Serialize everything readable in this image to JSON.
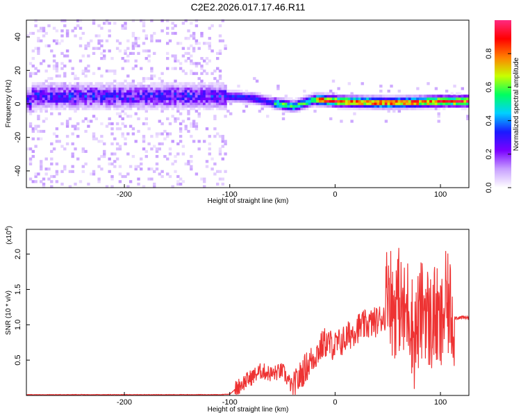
{
  "figure": {
    "title": "C2E2.2026.017.17.46.R11"
  },
  "chart_data": [
    {
      "type": "heatmap",
      "xlabel": "Height of straight line (km)",
      "ylabel": "Frequency (Hz)",
      "xlim": [
        -293,
        127
      ],
      "ylim": [
        -50,
        50
      ],
      "xticks": [
        -200,
        -100,
        0,
        100
      ],
      "yticks": [
        40,
        20,
        0,
        -20,
        -40
      ],
      "colorbar": {
        "label": "Normalized spectral amplitude",
        "range": [
          0.0,
          1.0
        ],
        "ticks": [
          "0.0",
          "0.2",
          "0.4",
          "0.6",
          "0.8"
        ],
        "colormap": [
          "#ffffff",
          "#c8a0ff",
          "#7a00ff",
          "#1a1aff",
          "#00d0ff",
          "#00ff60",
          "#c8ff00",
          "#ff8000",
          "#ff0000",
          "#ff2a80"
        ]
      },
      "ridge": [
        {
          "x": -290,
          "f": 4
        },
        {
          "x": -200,
          "f": 4
        },
        {
          "x": -110,
          "f": 4
        },
        {
          "x": -80,
          "f": 3
        },
        {
          "x": -60,
          "f": 0
        },
        {
          "x": -40,
          "f": -2
        },
        {
          "x": -20,
          "f": 2
        },
        {
          "x": 0,
          "f": 1
        },
        {
          "x": 50,
          "f": 0
        },
        {
          "x": 100,
          "f": 1
        },
        {
          "x": 125,
          "f": 1
        }
      ],
      "grid": false
    },
    {
      "type": "line",
      "xlabel": "Height of straight line (km)",
      "ylabel": "SNR (10 * v/v)",
      "scale_label": "(x10",
      "scale_exponent": "4",
      "scale_close": ")",
      "xlim": [
        -293,
        127
      ],
      "ylim": [
        0,
        2.35
      ],
      "xticks": [
        -200,
        -100,
        0,
        100
      ],
      "yticks": [
        "0.5",
        "1.0",
        "1.5",
        "2.0"
      ],
      "line_color": "#ee3333",
      "series": [
        {
          "values": [
            [
              -293,
              0.01
            ],
            [
              -150,
              0.01
            ],
            [
              -110,
              0.01
            ],
            [
              -100,
              0.02
            ],
            [
              -90,
              0.15
            ],
            [
              -80,
              0.25
            ],
            [
              -70,
              0.35
            ],
            [
              -60,
              0.3
            ],
            [
              -50,
              0.35
            ],
            [
              -40,
              0.1
            ],
            [
              -30,
              0.35
            ],
            [
              -20,
              0.55
            ],
            [
              -10,
              0.75
            ],
            [
              0,
              0.7
            ],
            [
              10,
              0.8
            ],
            [
              20,
              0.95
            ],
            [
              30,
              1.0
            ],
            [
              40,
              1.05
            ],
            [
              48,
              1.15
            ],
            [
              50,
              1.7
            ],
            [
              55,
              1.2
            ],
            [
              60,
              1.4
            ],
            [
              65,
              1.1
            ],
            [
              70,
              1.3
            ],
            [
              75,
              0.8
            ],
            [
              80,
              1.1
            ],
            [
              85,
              1.3
            ],
            [
              90,
              1.0
            ],
            [
              95,
              1.15
            ],
            [
              100,
              0.9
            ],
            [
              105,
              1.3
            ],
            [
              110,
              1.2
            ],
            [
              113,
              1.1
            ],
            [
              120,
              1.1
            ],
            [
              127,
              1.1
            ]
          ]
        }
      ],
      "grid": false
    }
  ]
}
